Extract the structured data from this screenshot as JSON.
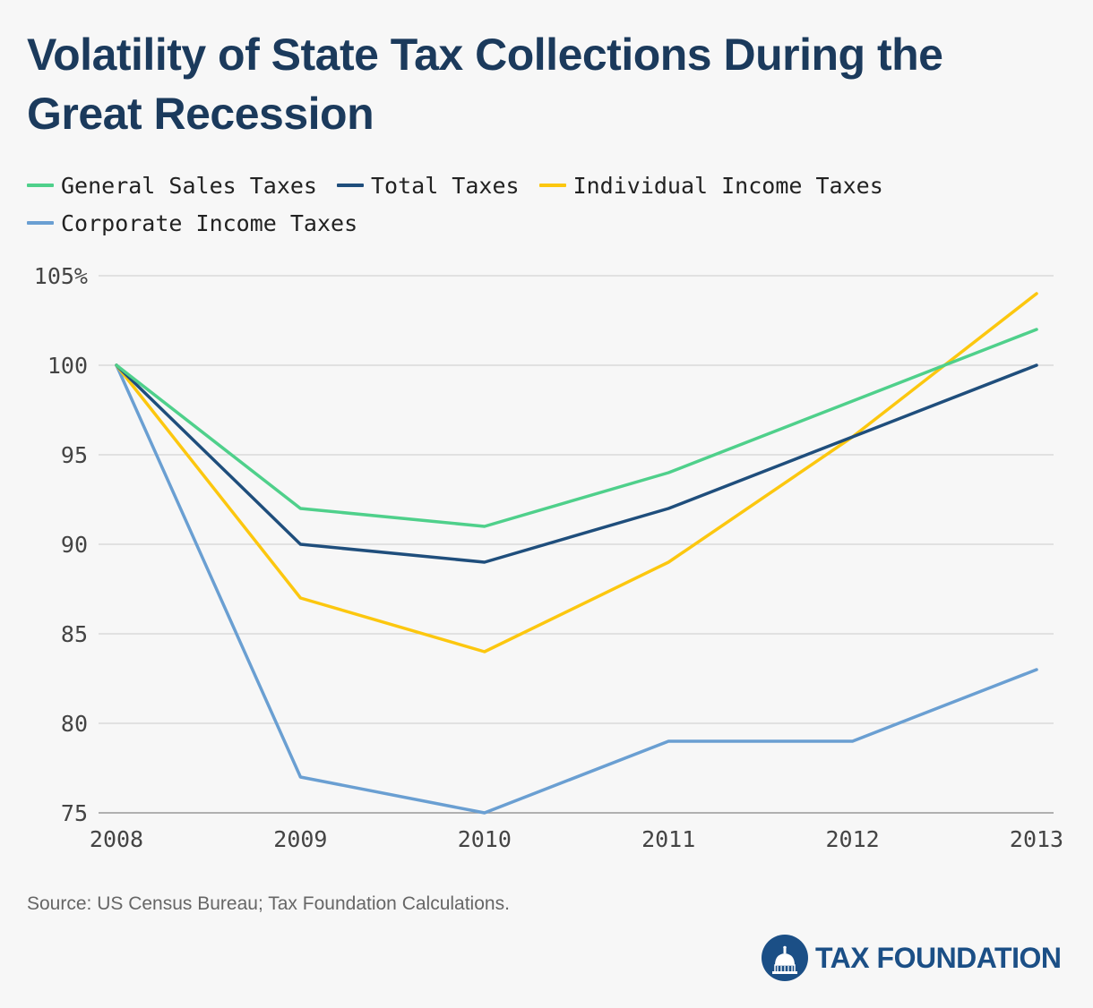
{
  "header": {
    "title": "Volatility of State Tax Collections During the Great Recession"
  },
  "legend": {
    "items": [
      {
        "label": "General Sales Taxes",
        "color": "#4fd08b"
      },
      {
        "label": "Total Taxes",
        "color": "#1f4e7c"
      },
      {
        "label": "Individual Income Taxes",
        "color": "#fcc70f"
      },
      {
        "label": "Corporate Income Taxes",
        "color": "#6a9fd2"
      }
    ]
  },
  "footer": {
    "source": "Source: US Census Bureau; Tax Foundation Calculations.",
    "brand": "TAX FOUNDATION"
  },
  "chart_data": {
    "type": "line",
    "title": "Volatility of State Tax Collections During the Great Recession",
    "x": [
      2008,
      2009,
      2010,
      2011,
      2012,
      2013
    ],
    "x_tick_labels": [
      "2008",
      "2009",
      "2010",
      "2011",
      "2012",
      "2013"
    ],
    "ylim": [
      75,
      105
    ],
    "y_ticks": [
      75,
      80,
      85,
      90,
      95,
      100,
      105
    ],
    "y_tick_labels": [
      "75",
      "80",
      "85",
      "90",
      "95",
      "100",
      "105%"
    ],
    "grid": true,
    "legend_position": "top-left",
    "series": [
      {
        "name": "General Sales Taxes",
        "color": "#4fd08b",
        "values": [
          100,
          92,
          91,
          94,
          98,
          102
        ]
      },
      {
        "name": "Total Taxes",
        "color": "#1f4e7c",
        "values": [
          100,
          90,
          89,
          92,
          96,
          100
        ]
      },
      {
        "name": "Individual Income Taxes",
        "color": "#fcc70f",
        "values": [
          100,
          87,
          84,
          89,
          96,
          104
        ]
      },
      {
        "name": "Corporate Income Taxes",
        "color": "#6a9fd2",
        "values": [
          100,
          77,
          75,
          79,
          79,
          83
        ]
      }
    ]
  }
}
